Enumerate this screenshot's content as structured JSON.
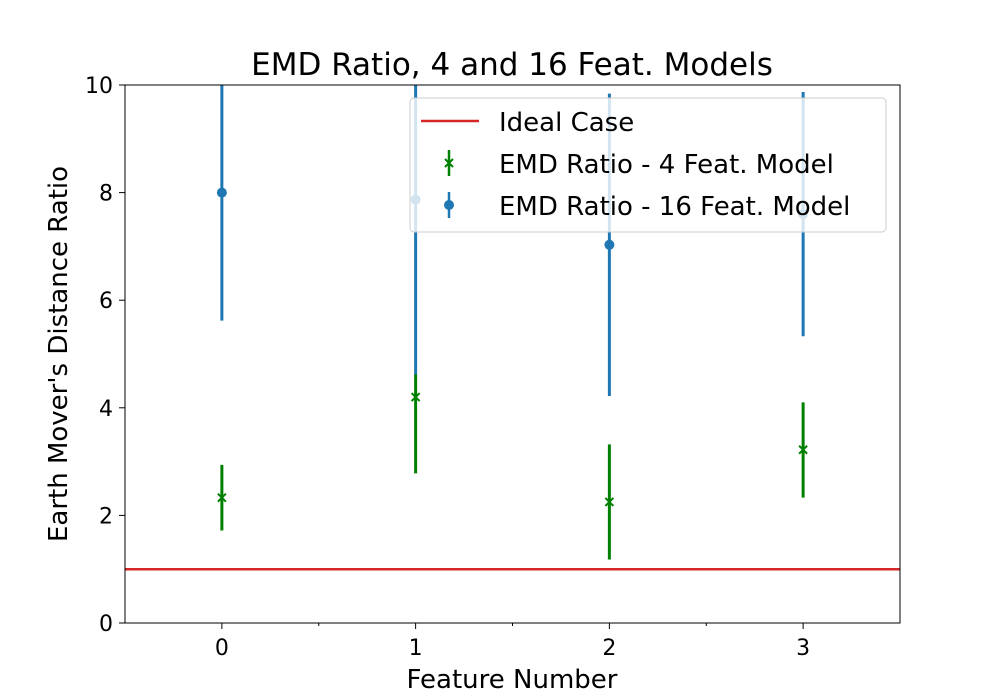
{
  "chart_data": {
    "type": "scatter",
    "title": "EMD Ratio, 4 and 16 Feat. Models",
    "xlabel": "Feature Number",
    "ylabel": "Earth Mover's Distance Ratio",
    "xlim": [
      -0.5,
      3.5
    ],
    "ylim": [
      0,
      10
    ],
    "x_ticks": [
      0,
      1,
      2,
      3
    ],
    "y_ticks": [
      0,
      2,
      4,
      6,
      8,
      10
    ],
    "grid": false,
    "legend_position": "top-right",
    "reference_line": {
      "name": "Ideal Case",
      "y": 1,
      "color": "#d62728"
    },
    "series": [
      {
        "name": "EMD Ratio - 16 Feat. Model",
        "marker": "circle",
        "color": "#1f77b4",
        "x": [
          0,
          1,
          2,
          3
        ],
        "y": [
          8.0,
          7.87,
          7.03,
          7.6
        ],
        "yerr_low": [
          5.62,
          4.6,
          4.22,
          5.33
        ],
        "yerr_high": [
          10.38,
          11.14,
          9.84,
          9.87
        ]
      },
      {
        "name": "EMD Ratio - 4 Feat. Model",
        "marker": "x",
        "color": "#008000",
        "x": [
          0,
          1,
          2,
          3
        ],
        "y": [
          2.33,
          4.2,
          2.25,
          3.22
        ],
        "yerr_low": [
          1.72,
          2.78,
          1.18,
          2.33
        ],
        "yerr_high": [
          2.94,
          4.62,
          3.32,
          4.1
        ]
      }
    ]
  },
  "legend": {
    "items": [
      {
        "label": "Ideal Case"
      },
      {
        "label": "EMD Ratio - 4 Feat. Model"
      },
      {
        "label": "EMD Ratio - 16 Feat. Model"
      }
    ]
  }
}
